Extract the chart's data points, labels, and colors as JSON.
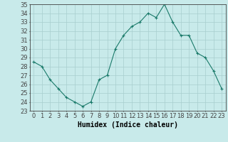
{
  "x": [
    0,
    1,
    2,
    3,
    4,
    5,
    6,
    7,
    8,
    9,
    10,
    11,
    12,
    13,
    14,
    15,
    16,
    17,
    18,
    19,
    20,
    21,
    22,
    23
  ],
  "y": [
    28.5,
    28.0,
    26.5,
    25.5,
    24.5,
    24.0,
    23.5,
    24.0,
    26.5,
    27.0,
    30.0,
    31.5,
    32.5,
    33.0,
    34.0,
    33.5,
    35.0,
    33.0,
    31.5,
    31.5,
    29.5,
    29.0,
    27.5,
    25.5
  ],
  "line_color": "#1a7a6a",
  "marker": "+",
  "marker_color": "#1a7a6a",
  "bg_color": "#c8eaea",
  "grid_color": "#a8cece",
  "axis_color": "#444444",
  "xlabel": "Humidex (Indice chaleur)",
  "ylim": [
    23,
    35
  ],
  "yticks": [
    23,
    24,
    25,
    26,
    27,
    28,
    29,
    30,
    31,
    32,
    33,
    34,
    35
  ],
  "xticks": [
    0,
    1,
    2,
    3,
    4,
    5,
    6,
    7,
    8,
    9,
    10,
    11,
    12,
    13,
    14,
    15,
    16,
    17,
    18,
    19,
    20,
    21,
    22,
    23
  ],
  "tick_fontsize": 6,
  "xlabel_fontsize": 7
}
